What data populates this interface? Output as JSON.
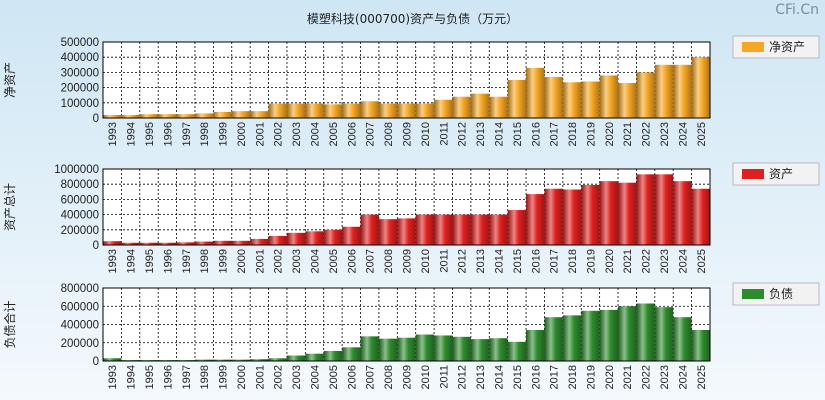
{
  "page": {
    "title": "模塑科技(000700)资产与负债（万元）",
    "watermark": "CFi.Cn"
  },
  "colors": {
    "background_top": "#cfe6f4",
    "background_bottom": "#f7fbfe",
    "plot_bg": "#ffffff",
    "net_assets": "#f5a623",
    "total_assets": "#e02020",
    "liabilities": "#2e8b2e"
  },
  "chart_data": [
    {
      "type": "bar",
      "ylabel": "净资产",
      "legend": "净资产",
      "legend_placement": "top-right",
      "grid": true,
      "ylim": [
        0,
        500000
      ],
      "yticks": [
        "500000",
        "400000",
        "300000",
        "200000",
        "100000",
        "0"
      ],
      "categories": [
        "1993",
        "1994",
        "1995",
        "1996",
        "1997",
        "1998",
        "1999",
        "2000",
        "2001",
        "2002",
        "2003",
        "2004",
        "2005",
        "2006",
        "2007",
        "2008",
        "2009",
        "2010",
        "2011",
        "2012",
        "2013",
        "2014",
        "2015",
        "2016",
        "2017",
        "2018",
        "2019",
        "2020",
        "2021",
        "2022",
        "2023",
        "2024",
        "2025"
      ],
      "values": [
        20000,
        20000,
        25000,
        25000,
        25000,
        30000,
        40000,
        45000,
        45000,
        95000,
        95000,
        95000,
        90000,
        95000,
        110000,
        95000,
        95000,
        95000,
        120000,
        140000,
        160000,
        140000,
        250000,
        330000,
        270000,
        235000,
        240000,
        280000,
        230000,
        300000,
        350000,
        350000,
        400000
      ]
    },
    {
      "type": "bar",
      "ylabel": "资产总计",
      "legend": "资产",
      "legend_placement": "top-right",
      "grid": true,
      "ylim": [
        0,
        1000000
      ],
      "yticks": [
        "1000000",
        "800000",
        "600000",
        "400000",
        "200000",
        "0"
      ],
      "categories": [
        "1993",
        "1994",
        "1995",
        "1996",
        "1997",
        "1998",
        "1999",
        "2000",
        "2001",
        "2002",
        "2003",
        "2004",
        "2005",
        "2006",
        "2007",
        "2008",
        "2009",
        "2010",
        "2011",
        "2012",
        "2013",
        "2014",
        "2015",
        "2016",
        "2017",
        "2018",
        "2019",
        "2020",
        "2021",
        "2022",
        "2023",
        "2024",
        "2025"
      ],
      "values": [
        50000,
        30000,
        30000,
        30000,
        35000,
        45000,
        55000,
        55000,
        80000,
        120000,
        160000,
        180000,
        200000,
        240000,
        400000,
        340000,
        350000,
        400000,
        400000,
        400000,
        400000,
        400000,
        460000,
        670000,
        740000,
        730000,
        790000,
        840000,
        820000,
        930000,
        930000,
        840000,
        740000
      ]
    },
    {
      "type": "bar",
      "ylabel": "负债合计",
      "legend": "负债",
      "legend_placement": "top-right",
      "grid": true,
      "ylim": [
        0,
        800000
      ],
      "yticks": [
        "800000",
        "600000",
        "400000",
        "200000",
        "0"
      ],
      "categories": [
        "1993",
        "1994",
        "1995",
        "1996",
        "1997",
        "1998",
        "1999",
        "2000",
        "2001",
        "2002",
        "2003",
        "2004",
        "2005",
        "2006",
        "2007",
        "2008",
        "2009",
        "2010",
        "2011",
        "2012",
        "2013",
        "2014",
        "2015",
        "2016",
        "2017",
        "2018",
        "2019",
        "2020",
        "2021",
        "2022",
        "2023",
        "2024",
        "2025"
      ],
      "values": [
        30000,
        10000,
        10000,
        10000,
        10000,
        15000,
        15000,
        15000,
        20000,
        30000,
        60000,
        80000,
        110000,
        150000,
        270000,
        245000,
        255000,
        290000,
        280000,
        265000,
        240000,
        250000,
        210000,
        340000,
        480000,
        500000,
        550000,
        560000,
        600000,
        630000,
        590000,
        480000,
        340000
      ]
    }
  ]
}
